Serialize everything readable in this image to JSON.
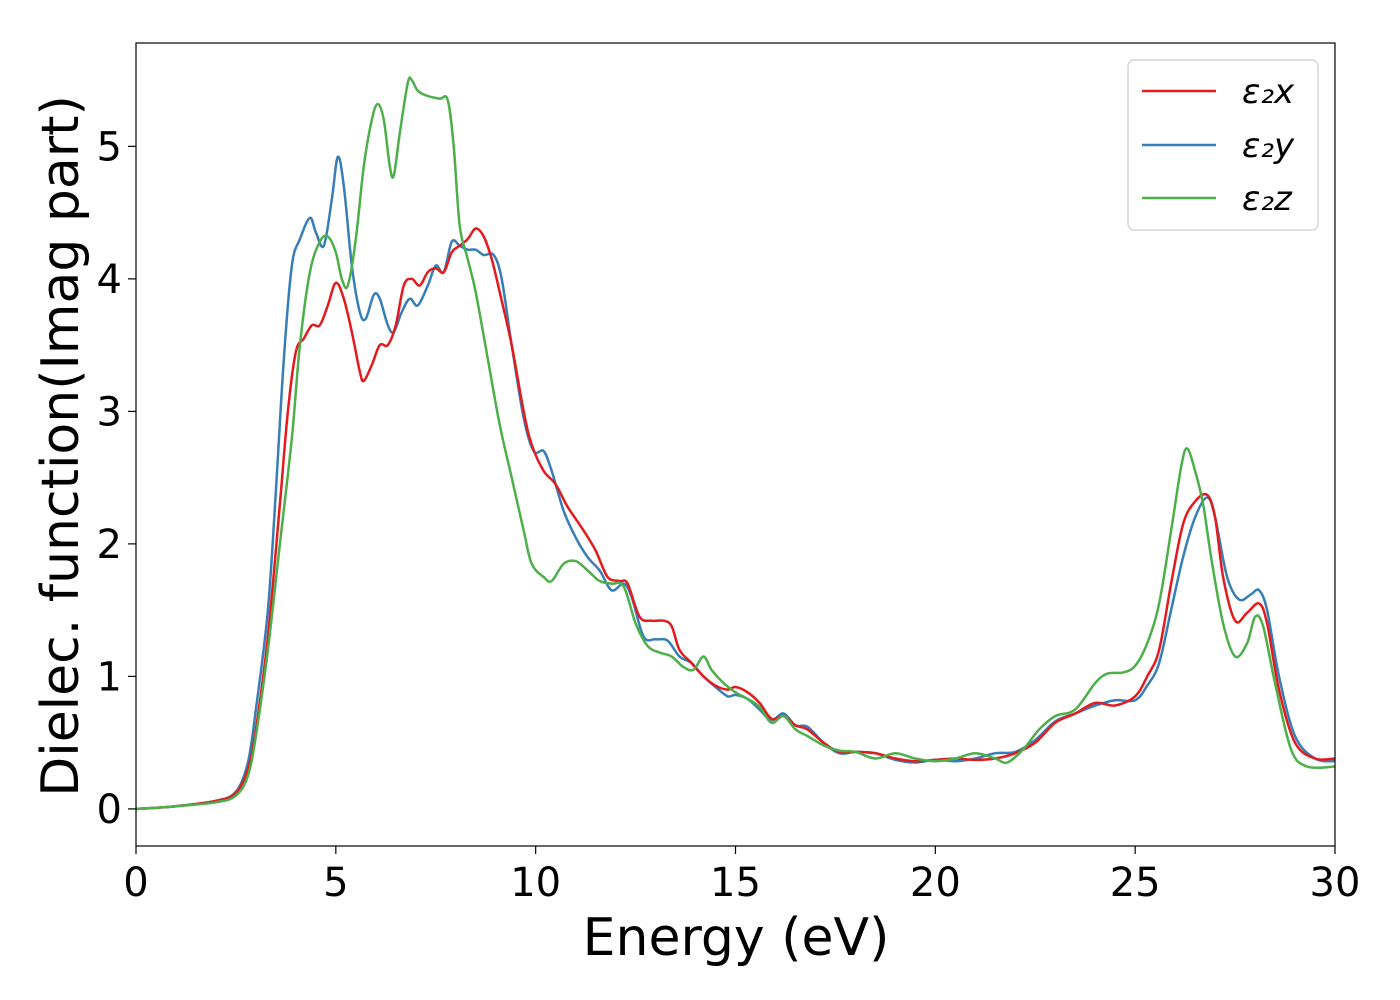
{
  "chart_data": {
    "type": "line",
    "title": "",
    "xlabel": "Energy (eV)",
    "ylabel": "Dielec. function(Imag part)",
    "xlim": [
      0,
      30
    ],
    "ylim": [
      -0.28,
      5.78
    ],
    "xticks": [
      0,
      5,
      10,
      15,
      20,
      25,
      30
    ],
    "yticks": [
      0,
      1,
      2,
      3,
      4,
      5
    ],
    "grid": false,
    "legend_position": "top-right",
    "series": [
      {
        "name": "ε₂x",
        "color": "#e41a1c",
        "points": [
          [
            0,
            0.0
          ],
          [
            1,
            0.02
          ],
          [
            2,
            0.06
          ],
          [
            2.5,
            0.12
          ],
          [
            2.8,
            0.3
          ],
          [
            3.0,
            0.6
          ],
          [
            3.3,
            1.3
          ],
          [
            3.6,
            2.3
          ],
          [
            3.8,
            3.0
          ],
          [
            4.0,
            3.45
          ],
          [
            4.2,
            3.55
          ],
          [
            4.4,
            3.65
          ],
          [
            4.6,
            3.65
          ],
          [
            4.8,
            3.8
          ],
          [
            5.0,
            3.97
          ],
          [
            5.2,
            3.85
          ],
          [
            5.4,
            3.6
          ],
          [
            5.6,
            3.3
          ],
          [
            5.7,
            3.23
          ],
          [
            5.9,
            3.35
          ],
          [
            6.1,
            3.5
          ],
          [
            6.3,
            3.5
          ],
          [
            6.5,
            3.65
          ],
          [
            6.7,
            3.95
          ],
          [
            6.9,
            4.0
          ],
          [
            7.1,
            3.95
          ],
          [
            7.3,
            4.05
          ],
          [
            7.5,
            4.08
          ],
          [
            7.7,
            4.05
          ],
          [
            7.9,
            4.2
          ],
          [
            8.1,
            4.25
          ],
          [
            8.3,
            4.3
          ],
          [
            8.5,
            4.38
          ],
          [
            8.7,
            4.32
          ],
          [
            8.9,
            4.15
          ],
          [
            9.1,
            3.9
          ],
          [
            9.4,
            3.5
          ],
          [
            9.7,
            3.0
          ],
          [
            9.9,
            2.75
          ],
          [
            10.2,
            2.55
          ],
          [
            10.5,
            2.45
          ],
          [
            10.8,
            2.28
          ],
          [
            11.2,
            2.1
          ],
          [
            11.5,
            1.95
          ],
          [
            11.8,
            1.75
          ],
          [
            12.1,
            1.72
          ],
          [
            12.3,
            1.7
          ],
          [
            12.6,
            1.45
          ],
          [
            12.9,
            1.42
          ],
          [
            13.2,
            1.42
          ],
          [
            13.4,
            1.38
          ],
          [
            13.6,
            1.2
          ],
          [
            13.9,
            1.1
          ],
          [
            14.2,
            1.0
          ],
          [
            14.5,
            0.93
          ],
          [
            14.8,
            0.9
          ],
          [
            15.0,
            0.92
          ],
          [
            15.3,
            0.88
          ],
          [
            15.6,
            0.8
          ],
          [
            15.9,
            0.68
          ],
          [
            16.2,
            0.7
          ],
          [
            16.5,
            0.63
          ],
          [
            16.8,
            0.6
          ],
          [
            17.2,
            0.5
          ],
          [
            17.6,
            0.43
          ],
          [
            18.0,
            0.43
          ],
          [
            18.5,
            0.42
          ],
          [
            19.0,
            0.38
          ],
          [
            19.5,
            0.36
          ],
          [
            20.0,
            0.37
          ],
          [
            20.5,
            0.38
          ],
          [
            21.0,
            0.37
          ],
          [
            21.5,
            0.38
          ],
          [
            22.0,
            0.42
          ],
          [
            22.5,
            0.5
          ],
          [
            23.0,
            0.65
          ],
          [
            23.5,
            0.72
          ],
          [
            24.0,
            0.8
          ],
          [
            24.5,
            0.78
          ],
          [
            25.0,
            0.85
          ],
          [
            25.3,
            1.0
          ],
          [
            25.6,
            1.2
          ],
          [
            25.9,
            1.7
          ],
          [
            26.2,
            2.15
          ],
          [
            26.5,
            2.32
          ],
          [
            26.8,
            2.37
          ],
          [
            27.0,
            2.2
          ],
          [
            27.2,
            1.75
          ],
          [
            27.5,
            1.42
          ],
          [
            27.8,
            1.48
          ],
          [
            28.1,
            1.55
          ],
          [
            28.3,
            1.4
          ],
          [
            28.6,
            0.9
          ],
          [
            29.0,
            0.5
          ],
          [
            29.5,
            0.38
          ],
          [
            30.0,
            0.38
          ]
        ]
      },
      {
        "name": "ε₂y",
        "color": "#377eb8",
        "points": [
          [
            0,
            0.0
          ],
          [
            1,
            0.02
          ],
          [
            2,
            0.06
          ],
          [
            2.5,
            0.13
          ],
          [
            2.8,
            0.35
          ],
          [
            3.0,
            0.75
          ],
          [
            3.3,
            1.5
          ],
          [
            3.5,
            2.4
          ],
          [
            3.7,
            3.4
          ],
          [
            3.9,
            4.1
          ],
          [
            4.1,
            4.3
          ],
          [
            4.35,
            4.46
          ],
          [
            4.5,
            4.35
          ],
          [
            4.7,
            4.25
          ],
          [
            4.9,
            4.6
          ],
          [
            5.05,
            4.92
          ],
          [
            5.2,
            4.7
          ],
          [
            5.4,
            4.1
          ],
          [
            5.6,
            3.75
          ],
          [
            5.75,
            3.7
          ],
          [
            5.95,
            3.88
          ],
          [
            6.1,
            3.85
          ],
          [
            6.3,
            3.65
          ],
          [
            6.45,
            3.6
          ],
          [
            6.65,
            3.75
          ],
          [
            6.85,
            3.85
          ],
          [
            7.05,
            3.8
          ],
          [
            7.3,
            3.95
          ],
          [
            7.5,
            4.1
          ],
          [
            7.7,
            4.05
          ],
          [
            7.9,
            4.28
          ],
          [
            8.1,
            4.25
          ],
          [
            8.3,
            4.22
          ],
          [
            8.5,
            4.22
          ],
          [
            8.7,
            4.18
          ],
          [
            8.95,
            4.18
          ],
          [
            9.15,
            4.0
          ],
          [
            9.4,
            3.5
          ],
          [
            9.7,
            2.95
          ],
          [
            9.95,
            2.7
          ],
          [
            10.2,
            2.7
          ],
          [
            10.4,
            2.55
          ],
          [
            10.7,
            2.25
          ],
          [
            11.0,
            2.05
          ],
          [
            11.3,
            1.9
          ],
          [
            11.6,
            1.8
          ],
          [
            11.9,
            1.65
          ],
          [
            12.2,
            1.7
          ],
          [
            12.4,
            1.6
          ],
          [
            12.7,
            1.3
          ],
          [
            13.0,
            1.28
          ],
          [
            13.3,
            1.27
          ],
          [
            13.6,
            1.15
          ],
          [
            13.9,
            1.1
          ],
          [
            14.2,
            1.0
          ],
          [
            14.5,
            0.92
          ],
          [
            14.8,
            0.85
          ],
          [
            15.0,
            0.86
          ],
          [
            15.3,
            0.83
          ],
          [
            15.6,
            0.75
          ],
          [
            15.9,
            0.67
          ],
          [
            16.2,
            0.72
          ],
          [
            16.5,
            0.63
          ],
          [
            16.8,
            0.62
          ],
          [
            17.2,
            0.5
          ],
          [
            17.6,
            0.42
          ],
          [
            18.0,
            0.43
          ],
          [
            18.5,
            0.42
          ],
          [
            19.0,
            0.37
          ],
          [
            19.5,
            0.35
          ],
          [
            20.0,
            0.37
          ],
          [
            20.5,
            0.36
          ],
          [
            21.0,
            0.38
          ],
          [
            21.5,
            0.42
          ],
          [
            22.0,
            0.43
          ],
          [
            22.5,
            0.52
          ],
          [
            23.0,
            0.66
          ],
          [
            23.5,
            0.72
          ],
          [
            24.0,
            0.78
          ],
          [
            24.5,
            0.82
          ],
          [
            25.0,
            0.82
          ],
          [
            25.3,
            0.93
          ],
          [
            25.6,
            1.1
          ],
          [
            25.9,
            1.5
          ],
          [
            26.2,
            1.9
          ],
          [
            26.5,
            2.2
          ],
          [
            26.8,
            2.35
          ],
          [
            27.0,
            2.2
          ],
          [
            27.3,
            1.75
          ],
          [
            27.6,
            1.58
          ],
          [
            27.9,
            1.62
          ],
          [
            28.1,
            1.65
          ],
          [
            28.3,
            1.5
          ],
          [
            28.6,
            1.0
          ],
          [
            29.0,
            0.55
          ],
          [
            29.5,
            0.38
          ],
          [
            30.0,
            0.36
          ]
        ]
      },
      {
        "name": "ε₂z",
        "color": "#4daf4a",
        "points": [
          [
            0,
            0.0
          ],
          [
            1,
            0.02
          ],
          [
            2,
            0.05
          ],
          [
            2.5,
            0.1
          ],
          [
            2.8,
            0.25
          ],
          [
            3.0,
            0.55
          ],
          [
            3.3,
            1.2
          ],
          [
            3.6,
            2.0
          ],
          [
            3.9,
            2.8
          ],
          [
            4.1,
            3.5
          ],
          [
            4.35,
            4.05
          ],
          [
            4.6,
            4.28
          ],
          [
            4.8,
            4.32
          ],
          [
            5.0,
            4.2
          ],
          [
            5.15,
            4.0
          ],
          [
            5.3,
            3.95
          ],
          [
            5.5,
            4.3
          ],
          [
            5.7,
            4.85
          ],
          [
            5.9,
            5.2
          ],
          [
            6.05,
            5.32
          ],
          [
            6.2,
            5.2
          ],
          [
            6.35,
            4.85
          ],
          [
            6.45,
            4.78
          ],
          [
            6.6,
            5.1
          ],
          [
            6.8,
            5.48
          ],
          [
            6.9,
            5.5
          ],
          [
            7.05,
            5.42
          ],
          [
            7.3,
            5.38
          ],
          [
            7.6,
            5.36
          ],
          [
            7.8,
            5.35
          ],
          [
            7.95,
            5.0
          ],
          [
            8.1,
            4.4
          ],
          [
            8.3,
            4.15
          ],
          [
            8.5,
            3.9
          ],
          [
            8.8,
            3.4
          ],
          [
            9.1,
            2.9
          ],
          [
            9.4,
            2.5
          ],
          [
            9.7,
            2.1
          ],
          [
            9.9,
            1.85
          ],
          [
            10.2,
            1.75
          ],
          [
            10.4,
            1.72
          ],
          [
            10.7,
            1.85
          ],
          [
            11.0,
            1.87
          ],
          [
            11.3,
            1.8
          ],
          [
            11.6,
            1.72
          ],
          [
            11.9,
            1.7
          ],
          [
            12.2,
            1.68
          ],
          [
            12.5,
            1.4
          ],
          [
            12.8,
            1.23
          ],
          [
            13.1,
            1.18
          ],
          [
            13.4,
            1.15
          ],
          [
            13.7,
            1.07
          ],
          [
            13.95,
            1.05
          ],
          [
            14.2,
            1.15
          ],
          [
            14.4,
            1.05
          ],
          [
            14.7,
            0.95
          ],
          [
            15.0,
            0.88
          ],
          [
            15.3,
            0.83
          ],
          [
            15.6,
            0.77
          ],
          [
            15.9,
            0.65
          ],
          [
            16.2,
            0.7
          ],
          [
            16.5,
            0.6
          ],
          [
            16.8,
            0.55
          ],
          [
            17.2,
            0.48
          ],
          [
            17.6,
            0.44
          ],
          [
            18.0,
            0.43
          ],
          [
            18.5,
            0.38
          ],
          [
            19.0,
            0.42
          ],
          [
            19.5,
            0.38
          ],
          [
            20.0,
            0.36
          ],
          [
            20.5,
            0.38
          ],
          [
            21.0,
            0.42
          ],
          [
            21.5,
            0.38
          ],
          [
            21.8,
            0.35
          ],
          [
            22.2,
            0.45
          ],
          [
            22.6,
            0.6
          ],
          [
            23.0,
            0.7
          ],
          [
            23.5,
            0.75
          ],
          [
            24.0,
            0.95
          ],
          [
            24.3,
            1.02
          ],
          [
            24.7,
            1.03
          ],
          [
            25.0,
            1.08
          ],
          [
            25.3,
            1.25
          ],
          [
            25.6,
            1.55
          ],
          [
            25.9,
            2.1
          ],
          [
            26.15,
            2.58
          ],
          [
            26.3,
            2.72
          ],
          [
            26.5,
            2.55
          ],
          [
            26.7,
            2.3
          ],
          [
            26.9,
            1.9
          ],
          [
            27.2,
            1.4
          ],
          [
            27.5,
            1.15
          ],
          [
            27.8,
            1.25
          ],
          [
            28.0,
            1.45
          ],
          [
            28.2,
            1.38
          ],
          [
            28.5,
            0.95
          ],
          [
            28.9,
            0.45
          ],
          [
            29.3,
            0.32
          ],
          [
            30.0,
            0.32
          ]
        ]
      }
    ]
  }
}
